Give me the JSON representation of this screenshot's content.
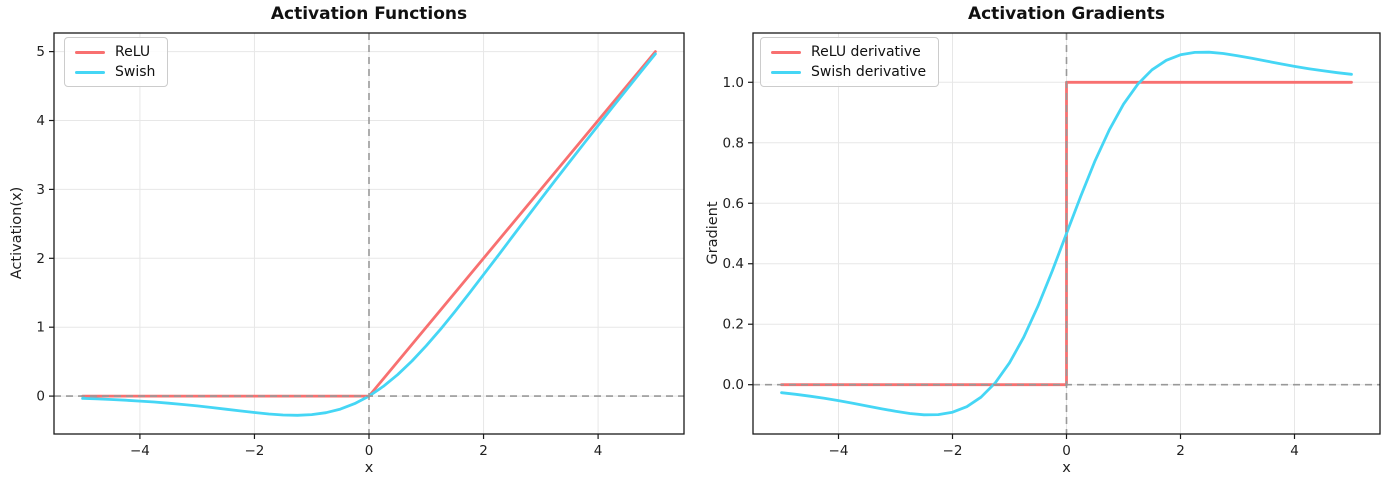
{
  "style": {
    "background": "#ffffff",
    "grid_color": "#e7e7e7",
    "axis_color": "#1a1a1a",
    "ref_line_color": "#999999",
    "tick_label_color": "#1f1f1f",
    "title_color": "#111111",
    "relu_color": "#f87070",
    "swish_color": "#45d6f5"
  },
  "chart_data": [
    {
      "type": "line",
      "title": "Activation Functions",
      "xlabel": "x",
      "ylabel": "Activation(x)",
      "xlim": [
        -5.5,
        5.5
      ],
      "ylim": [
        -0.55,
        5.27
      ],
      "xticks": [
        -4,
        -2,
        0,
        2,
        4
      ],
      "xtick_labels": [
        "−4",
        "−2",
        "0",
        "2",
        "4"
      ],
      "yticks": [
        0,
        1,
        2,
        3,
        4,
        5
      ],
      "ytick_labels": [
        "0",
        "1",
        "2",
        "3",
        "4",
        "5"
      ],
      "grid": true,
      "legend_position": "upper left",
      "reference_lines": {
        "vertical_x": 0,
        "horizontal_y": 0,
        "style": "dashed"
      },
      "series": [
        {
          "name": "ReLU",
          "color": "#f87070",
          "x": [
            -5,
            0,
            5
          ],
          "y": [
            0,
            0,
            5
          ]
        },
        {
          "name": "Swish",
          "color": "#45d6f5",
          "x": [
            -5,
            -4.75,
            -4.5,
            -4.25,
            -4,
            -3.75,
            -3.5,
            -3.25,
            -3,
            -2.75,
            -2.5,
            -2.25,
            -2,
            -1.75,
            -1.5,
            -1.25,
            -1,
            -0.75,
            -0.5,
            -0.25,
            0,
            0.25,
            0.5,
            0.75,
            1,
            1.25,
            1.5,
            1.75,
            2,
            2.25,
            2.5,
            2.75,
            3,
            3.25,
            3.5,
            3.75,
            4,
            4.25,
            4.5,
            4.75,
            5
          ],
          "y": [
            -0.0335,
            -0.0407,
            -0.0494,
            -0.0598,
            -0.0719,
            -0.0862,
            -0.1026,
            -0.1213,
            -0.1423,
            -0.1652,
            -0.1896,
            -0.2145,
            -0.2384,
            -0.2591,
            -0.2736,
            -0.2784,
            -0.2689,
            -0.2406,
            -0.1888,
            -0.1095,
            0,
            0.1405,
            0.3112,
            0.5094,
            0.7311,
            0.9716,
            1.2264,
            1.4909,
            1.7616,
            2.0355,
            2.3104,
            2.5848,
            2.8577,
            3.1287,
            3.3974,
            3.6638,
            3.9281,
            4.1902,
            4.4506,
            4.7093,
            4.9665
          ]
        }
      ]
    },
    {
      "type": "line",
      "title": "Activation Gradients",
      "xlabel": "x",
      "ylabel": "Gradient",
      "xlim": [
        -5.5,
        5.5
      ],
      "ylim": [
        -0.163,
        1.163
      ],
      "xticks": [
        -4,
        -2,
        0,
        2,
        4
      ],
      "xtick_labels": [
        "−4",
        "−2",
        "0",
        "2",
        "4"
      ],
      "yticks": [
        0,
        0.2,
        0.4,
        0.6,
        0.8,
        1.0
      ],
      "ytick_labels": [
        "0.0",
        "0.2",
        "0.4",
        "0.6",
        "0.8",
        "1.0"
      ],
      "grid": true,
      "legend_position": "upper left",
      "reference_lines": {
        "vertical_x": 0,
        "horizontal_y": 0,
        "style": "dashed"
      },
      "series": [
        {
          "name": "ReLU derivative",
          "color": "#f87070",
          "x": [
            -5,
            0,
            0,
            5
          ],
          "y": [
            0,
            0,
            1,
            1
          ]
        },
        {
          "name": "Swish derivative",
          "color": "#45d6f5",
          "x": [
            -5,
            -4.75,
            -4.5,
            -4.25,
            -4,
            -3.75,
            -3.5,
            -3.25,
            -3,
            -2.75,
            -2.5,
            -2.25,
            -2,
            -1.75,
            -1.5,
            -1.25,
            -1,
            -0.75,
            -0.5,
            -0.25,
            0,
            0.25,
            0.5,
            0.75,
            1,
            1.25,
            1.5,
            1.75,
            2,
            2.25,
            2.5,
            2.75,
            3,
            3.25,
            3.5,
            3.75,
            4,
            4.25,
            4.5,
            4.75,
            5
          ],
          "y": [
            -0.0265,
            -0.0318,
            -0.0379,
            -0.0449,
            -0.0527,
            -0.0612,
            -0.0703,
            -0.0795,
            -0.0881,
            -0.0952,
            -0.0994,
            -0.0987,
            -0.0908,
            -0.0727,
            -0.0413,
            0.0063,
            0.0723,
            0.1574,
            0.26,
            0.3763,
            0.5,
            0.6237,
            0.74,
            0.8426,
            0.9277,
            0.9937,
            1.0413,
            1.0727,
            1.0908,
            1.0987,
            1.0994,
            1.0952,
            1.0881,
            1.0795,
            1.0703,
            1.0612,
            1.0527,
            1.0449,
            1.0379,
            1.0318,
            1.0265
          ]
        }
      ]
    }
  ]
}
